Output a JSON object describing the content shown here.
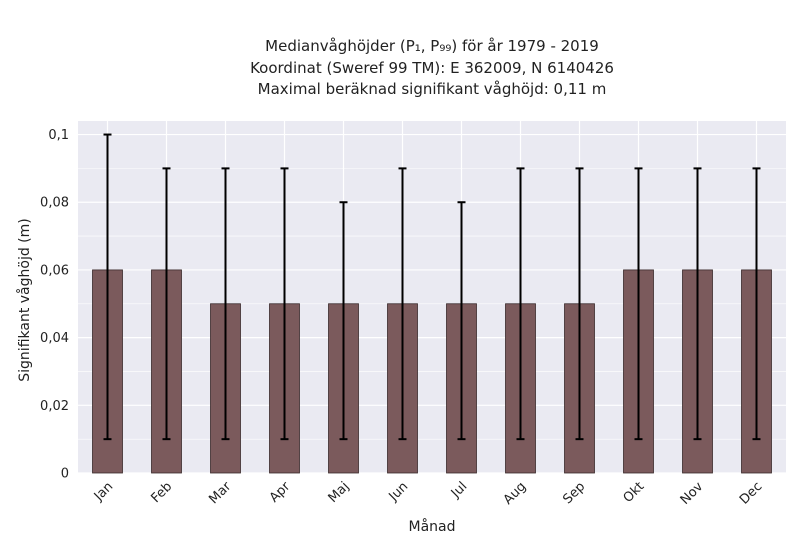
{
  "chart_data": {
    "type": "bar",
    "title_lines": [
      "Medianvåghöjder (P₁, P₉₉) för år 1979 - 2019",
      "Koordinat (Sweref 99 TM): E 362009, N 6140426",
      "Maximal beräknad signifikant våghöjd: 0,11 m"
    ],
    "xlabel": "Månad",
    "ylabel": "Signifikant våghöjd (m)",
    "categories": [
      "Jan",
      "Feb",
      "Mar",
      "Apr",
      "Maj",
      "Jun",
      "Jul",
      "Aug",
      "Sep",
      "Okt",
      "Nov",
      "Dec"
    ],
    "values": [
      0.06,
      0.06,
      0.05,
      0.05,
      0.05,
      0.05,
      0.05,
      0.05,
      0.05,
      0.06,
      0.06,
      0.06
    ],
    "error_low": [
      0.01,
      0.01,
      0.01,
      0.01,
      0.01,
      0.01,
      0.01,
      0.01,
      0.01,
      0.01,
      0.01,
      0.01
    ],
    "error_high": [
      0.1,
      0.09,
      0.09,
      0.09,
      0.08,
      0.09,
      0.08,
      0.09,
      0.09,
      0.09,
      0.09,
      0.09
    ],
    "ylim": [
      0,
      0.104
    ],
    "yticks": [
      0,
      0.02,
      0.04,
      0.06,
      0.08,
      0.1
    ],
    "ytick_labels": [
      "0",
      "0,02",
      "0,04",
      "0,06",
      "0,08",
      "0,1"
    ],
    "grid": true,
    "colors": {
      "bar": "#7b5a5c",
      "bar_edge": "#3a2a2b",
      "error_bar": "#000000",
      "plot_bg": "#eaeaf2",
      "grid": "#ffffff"
    }
  }
}
